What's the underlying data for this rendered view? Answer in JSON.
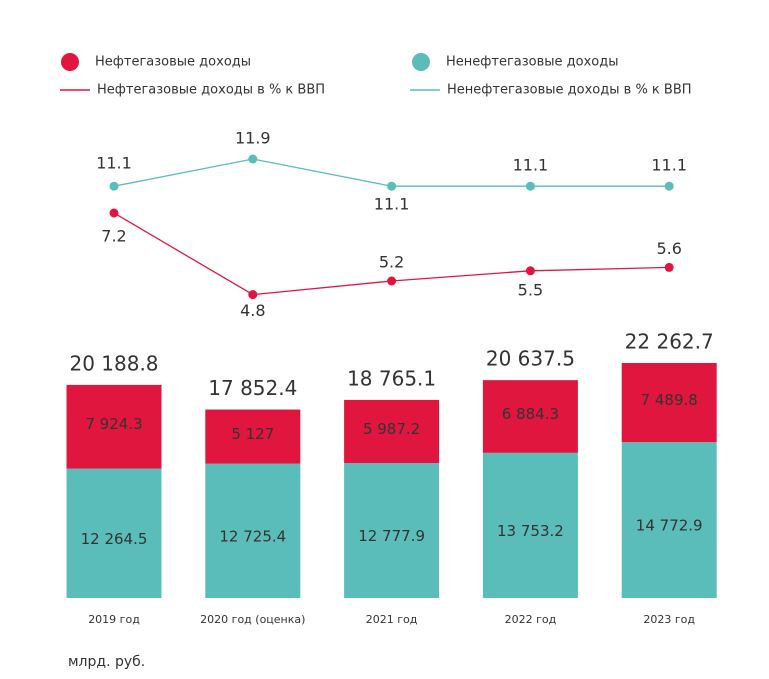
{
  "chart_data": [
    {
      "type": "line",
      "series": [
        {
          "name": "Нефтегазовые доходы в % к ВВП",
          "color": "#e0163f",
          "values": [
            7.2,
            4.8,
            5.2,
            5.5,
            5.6
          ]
        },
        {
          "name": "Ненефтегазовые доходы в % к ВВП",
          "color": "#5bbdb9",
          "values": [
            11.1,
            11.9,
            11.1,
            11.1,
            11.1
          ]
        }
      ]
    },
    {
      "type": "bar",
      "stacked": true,
      "categories": [
        "2019 год",
        "2020 год (оценка)",
        "2021 год",
        "2022 год",
        "2023 год"
      ],
      "series": [
        {
          "name": "Ненефтегазовые доходы",
          "color": "#5bbdb9",
          "values": [
            12264.5,
            12725.4,
            12777.9,
            13753.2,
            14772.9
          ],
          "value_labels": [
            "12 264.5",
            "12 725.4",
            "12 777.9",
            "13 753.2",
            "14 772.9"
          ]
        },
        {
          "name": "Нефтегазовые доходы",
          "color": "#e0163f",
          "values": [
            7924.3,
            5127,
            5987.2,
            6884.3,
            7489.8
          ],
          "value_labels": [
            "7 924.3",
            "5 127",
            "5 987.2",
            "6 884.3",
            "7 489.8"
          ]
        }
      ],
      "totals": {
        "values": [
          20188.8,
          17852.4,
          18765.1,
          20637.5,
          22262.7
        ],
        "value_labels": [
          "20 188.8",
          "17 852.4",
          "18 765.1",
          "20 637.5",
          "22 262.7"
        ]
      },
      "note": "млрд. руб."
    }
  ]
}
